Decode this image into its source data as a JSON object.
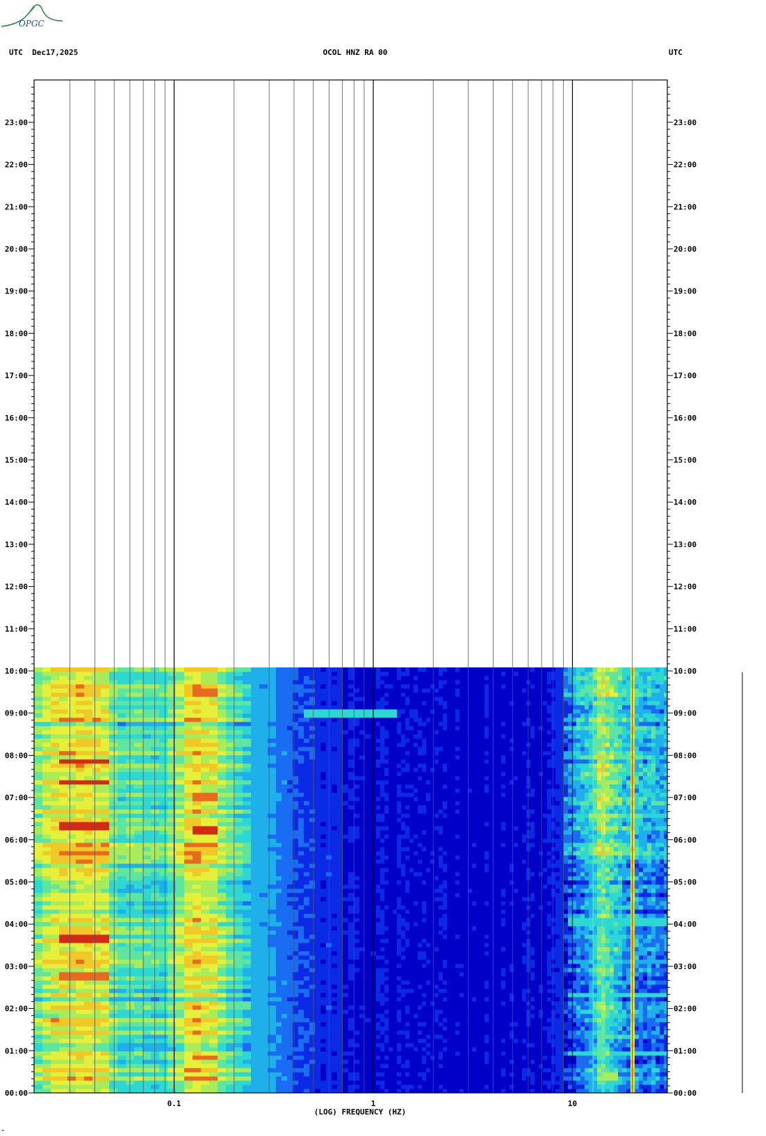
{
  "header": {
    "left": "UTC  Dec17,2025",
    "center": "OCOL HNZ RA 00",
    "right": "UTC"
  },
  "logo": {
    "text": "OPGC",
    "color": "#1f7a3a"
  },
  "corner_mark": "„",
  "chart_data": {
    "type": "heatmap",
    "title": "OCOL HNZ RA 00",
    "xlabel": "(LOG) FREQUENCY (HZ)",
    "ylabel": "",
    "x_scale": "log",
    "xlim": [
      0.02,
      32
    ],
    "x_major_ticks": [
      {
        "value": 0.1,
        "label": "0.1"
      },
      {
        "value": 1,
        "label": "1"
      },
      {
        "value": 10,
        "label": "10"
      }
    ],
    "x_gridlines": [
      0.03,
      0.04,
      0.05,
      0.06,
      0.07,
      0.08,
      0.09,
      0.1,
      0.2,
      0.3,
      0.4,
      0.5,
      0.6,
      0.7,
      0.8,
      0.9,
      1,
      2,
      3,
      4,
      5,
      6,
      7,
      8,
      9,
      10,
      20
    ],
    "ylim_hours": [
      0,
      24
    ],
    "y_tick_labels": [
      "00:00",
      "01:00",
      "02:00",
      "03:00",
      "04:00",
      "05:00",
      "06:00",
      "07:00",
      "08:00",
      "09:00",
      "10:00",
      "11:00",
      "12:00",
      "13:00",
      "14:00",
      "15:00",
      "16:00",
      "17:00",
      "18:00",
      "19:00",
      "20:00",
      "21:00",
      "22:00",
      "23:00"
    ],
    "data_extent_hours": [
      0,
      10.07
    ],
    "colormap": [
      "#0000c8",
      "#0a2ae6",
      "#1a6cf2",
      "#1fb0ec",
      "#2ed8d2",
      "#5ee6a0",
      "#a8ec5a",
      "#e6f03a",
      "#f0c828",
      "#e86a1e",
      "#d22a14"
    ],
    "spectral_profile": [
      {
        "f": 0.02,
        "level": 0.5
      },
      {
        "f": 0.027,
        "level": 0.7
      },
      {
        "f": 0.048,
        "level": 0.68
      },
      {
        "f": 0.05,
        "level": 0.46
      },
      {
        "f": 0.065,
        "level": 0.48
      },
      {
        "f": 0.095,
        "level": 0.46
      },
      {
        "f": 0.12,
        "level": 0.74
      },
      {
        "f": 0.16,
        "level": 0.66
      },
      {
        "f": 0.2,
        "level": 0.45
      },
      {
        "f": 0.3,
        "level": 0.28
      },
      {
        "f": 0.45,
        "level": 0.16
      },
      {
        "f": 0.8,
        "level": 0.08
      },
      {
        "f": 3,
        "level": 0.05
      },
      {
        "f": 7,
        "level": 0.06
      },
      {
        "f": 9,
        "level": 0.16
      },
      {
        "f": 12,
        "level": 0.3
      },
      {
        "f": 14,
        "level": 0.55
      },
      {
        "f": 16,
        "level": 0.38
      },
      {
        "f": 20,
        "level": 0.3
      },
      {
        "f": 32,
        "level": 0.22
      }
    ],
    "features": [
      {
        "f_min": 0.027,
        "f_max": 0.048,
        "hour": 6.35,
        "level": 0.97
      },
      {
        "f_min": 0.027,
        "f_max": 0.048,
        "hour": 7.35,
        "level": 0.96
      },
      {
        "f_min": 0.027,
        "f_max": 0.048,
        "hour": 7.85,
        "level": 0.92
      },
      {
        "f_min": 0.027,
        "f_max": 0.048,
        "hour": 3.68,
        "level": 0.95
      },
      {
        "f_min": 0.027,
        "f_max": 0.048,
        "hour": 2.75,
        "level": 0.9
      },
      {
        "f_min": 0.12,
        "f_max": 0.16,
        "hour": 6.25,
        "level": 0.95
      },
      {
        "f_min": 0.12,
        "f_max": 0.16,
        "hour": 9.5,
        "level": 0.9
      },
      {
        "f_min": 0.12,
        "f_max": 0.16,
        "hour": 7.0,
        "level": 0.88
      },
      {
        "f_min": 0.12,
        "f_max": 0.16,
        "hour": 0.85,
        "level": 0.88
      },
      {
        "f_min": 0.45,
        "f_max": 1.3,
        "hour": 9.0,
        "level": 0.42
      },
      {
        "f_min": 9.5,
        "f_max": 32,
        "hour": 4.03,
        "level": 0.45
      },
      {
        "f_min": 9.5,
        "f_max": 32,
        "hour": 2.32,
        "level": 0.4
      },
      {
        "f_min": 9.5,
        "f_max": 32,
        "hour": 0.95,
        "level": 0.4
      },
      {
        "f_min": 9.5,
        "f_max": 32,
        "hour": 3.1,
        "level": 0.35
      },
      {
        "f_min": 14,
        "f_max": 17,
        "hour": 0.4,
        "level": 0.55
      }
    ],
    "line_features": [
      {
        "f": 12.7,
        "level": 0.4
      },
      {
        "f": 14.2,
        "level": 0.6
      },
      {
        "f": 20,
        "level": 0.85
      }
    ]
  }
}
